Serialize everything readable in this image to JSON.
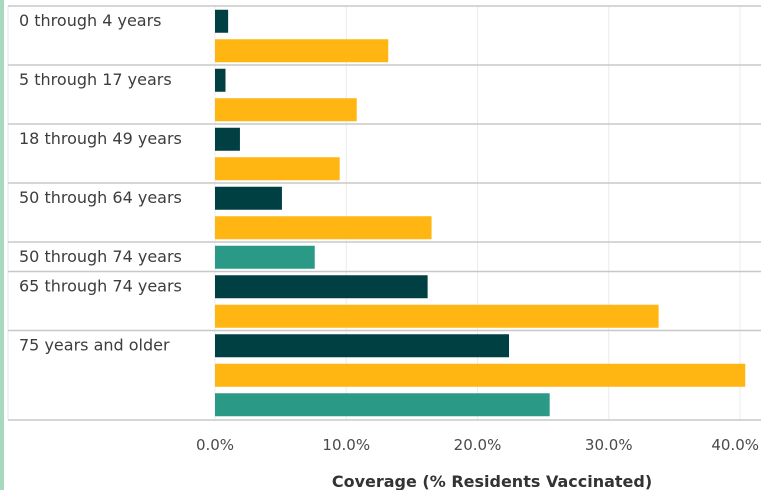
{
  "chart_data": {
    "type": "bar",
    "orientation": "horizontal",
    "xlabel": "Coverage (% Residents Vaccinated)",
    "xlim": [
      0,
      40
    ],
    "x_ticks": [
      "0.0%",
      "10.0%",
      "20.0%",
      "30.0%",
      "40.0%"
    ],
    "grid": true,
    "colors": {
      "dark_teal": "#003f42",
      "gold": "#ffb612",
      "teal": "#2a9a87"
    },
    "groups": [
      {
        "label": "0 through 4 years",
        "bars": [
          {
            "color": "dark_teal",
            "value": 1.0
          },
          {
            "color": "gold",
            "value": 13.2
          }
        ]
      },
      {
        "label": "5 through 17 years",
        "bars": [
          {
            "color": "dark_teal",
            "value": 0.8
          },
          {
            "color": "gold",
            "value": 10.8
          }
        ]
      },
      {
        "label": "18 through 49 years",
        "bars": [
          {
            "color": "dark_teal",
            "value": 1.9
          },
          {
            "color": "gold",
            "value": 9.5
          }
        ]
      },
      {
        "label": "50 through 64 years",
        "bars": [
          {
            "color": "dark_teal",
            "value": 5.1
          },
          {
            "color": "gold",
            "value": 16.5
          }
        ]
      },
      {
        "label": "50 through 74 years",
        "bars": [
          {
            "color": "teal",
            "value": 7.6
          }
        ]
      },
      {
        "label": "65 through 74 years",
        "bars": [
          {
            "color": "dark_teal",
            "value": 16.2
          },
          {
            "color": "gold",
            "value": 33.8
          }
        ]
      },
      {
        "label": "75 years and older",
        "bars": [
          {
            "color": "dark_teal",
            "value": 22.4
          },
          {
            "color": "gold",
            "value": 40.4
          },
          {
            "color": "teal",
            "value": 25.5
          }
        ]
      }
    ]
  }
}
